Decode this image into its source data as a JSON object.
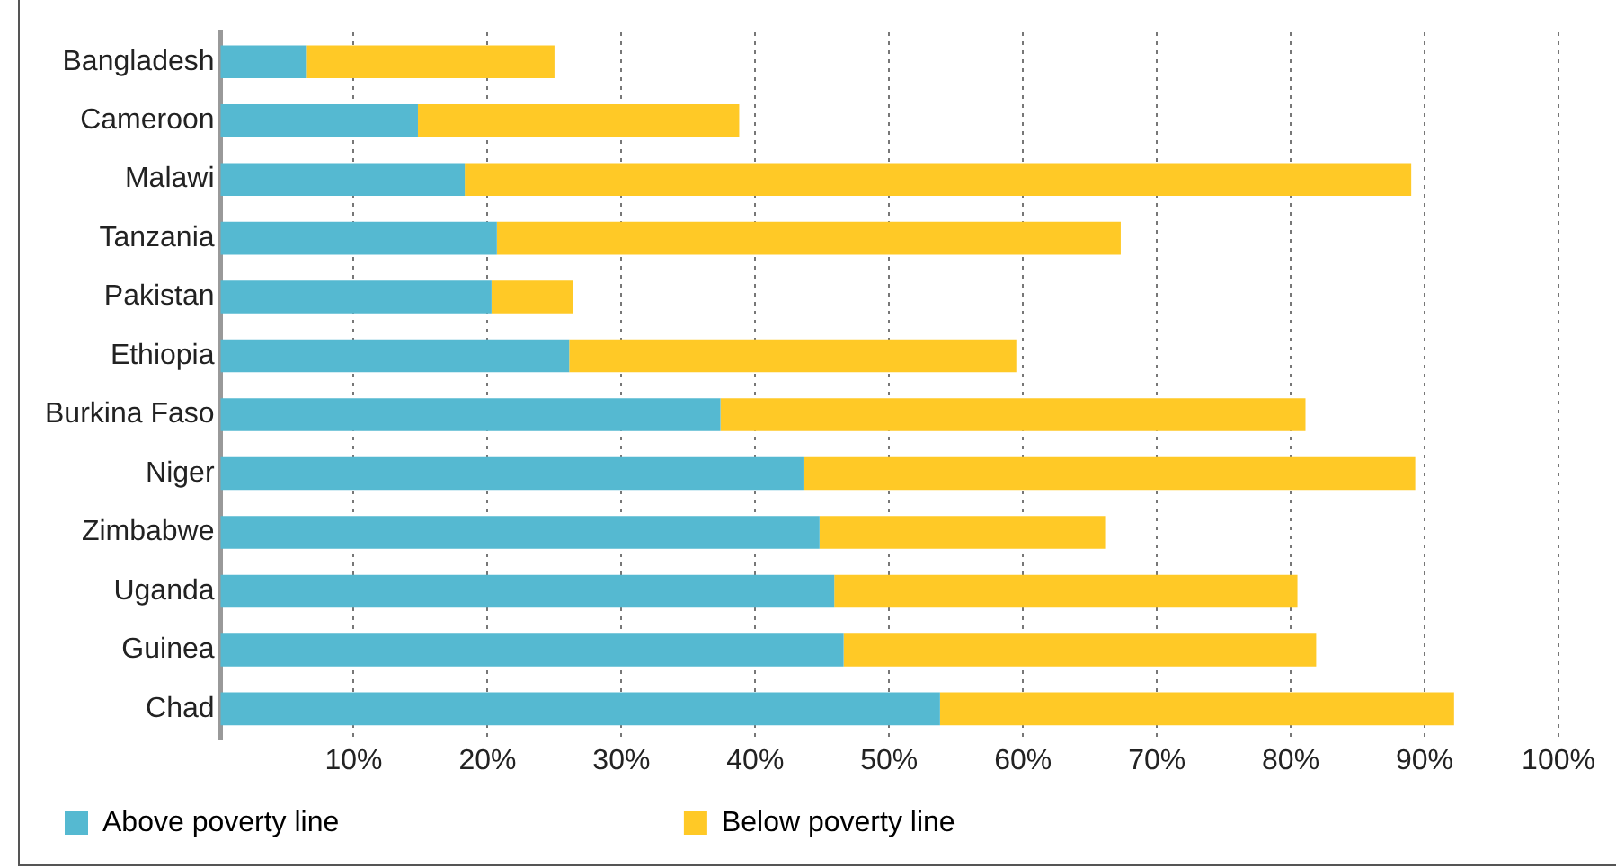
{
  "chart_data": {
    "type": "bar",
    "orientation": "horizontal",
    "stacked": true,
    "categories": [
      "Bangladesh",
      "Cameroon",
      "Malawi",
      "Tanzania",
      "Pakistan",
      "Ethiopia",
      "Burkina Faso",
      "Niger",
      "Zimbabwe",
      "Uganda",
      "Guinea",
      "Chad"
    ],
    "series": [
      {
        "name": "Above poverty line",
        "color": "#55b9d1",
        "values": [
          6.5,
          14.8,
          18.3,
          20.7,
          20.3,
          26.1,
          37.4,
          43.6,
          44.8,
          45.9,
          46.6,
          53.8
        ]
      },
      {
        "name": "Below poverty line",
        "color": "#ffc926",
        "values": [
          18.5,
          24.0,
          70.7,
          46.6,
          6.1,
          33.4,
          43.7,
          45.7,
          21.4,
          34.6,
          35.3,
          38.4
        ]
      }
    ],
    "xlim": [
      0,
      100
    ],
    "xticks": [
      {
        "value": 10,
        "label": "10%"
      },
      {
        "value": 20,
        "label": "20%"
      },
      {
        "value": 30,
        "label": "30%"
      },
      {
        "value": 40,
        "label": "40%"
      },
      {
        "value": 50,
        "label": "50%"
      },
      {
        "value": 60,
        "label": "60%"
      },
      {
        "value": 70,
        "label": "70%"
      },
      {
        "value": 80,
        "label": "80%"
      },
      {
        "value": 90,
        "label": "90%"
      },
      {
        "value": 100,
        "label": "100%"
      }
    ],
    "grid": "x",
    "legend": "bottom"
  }
}
